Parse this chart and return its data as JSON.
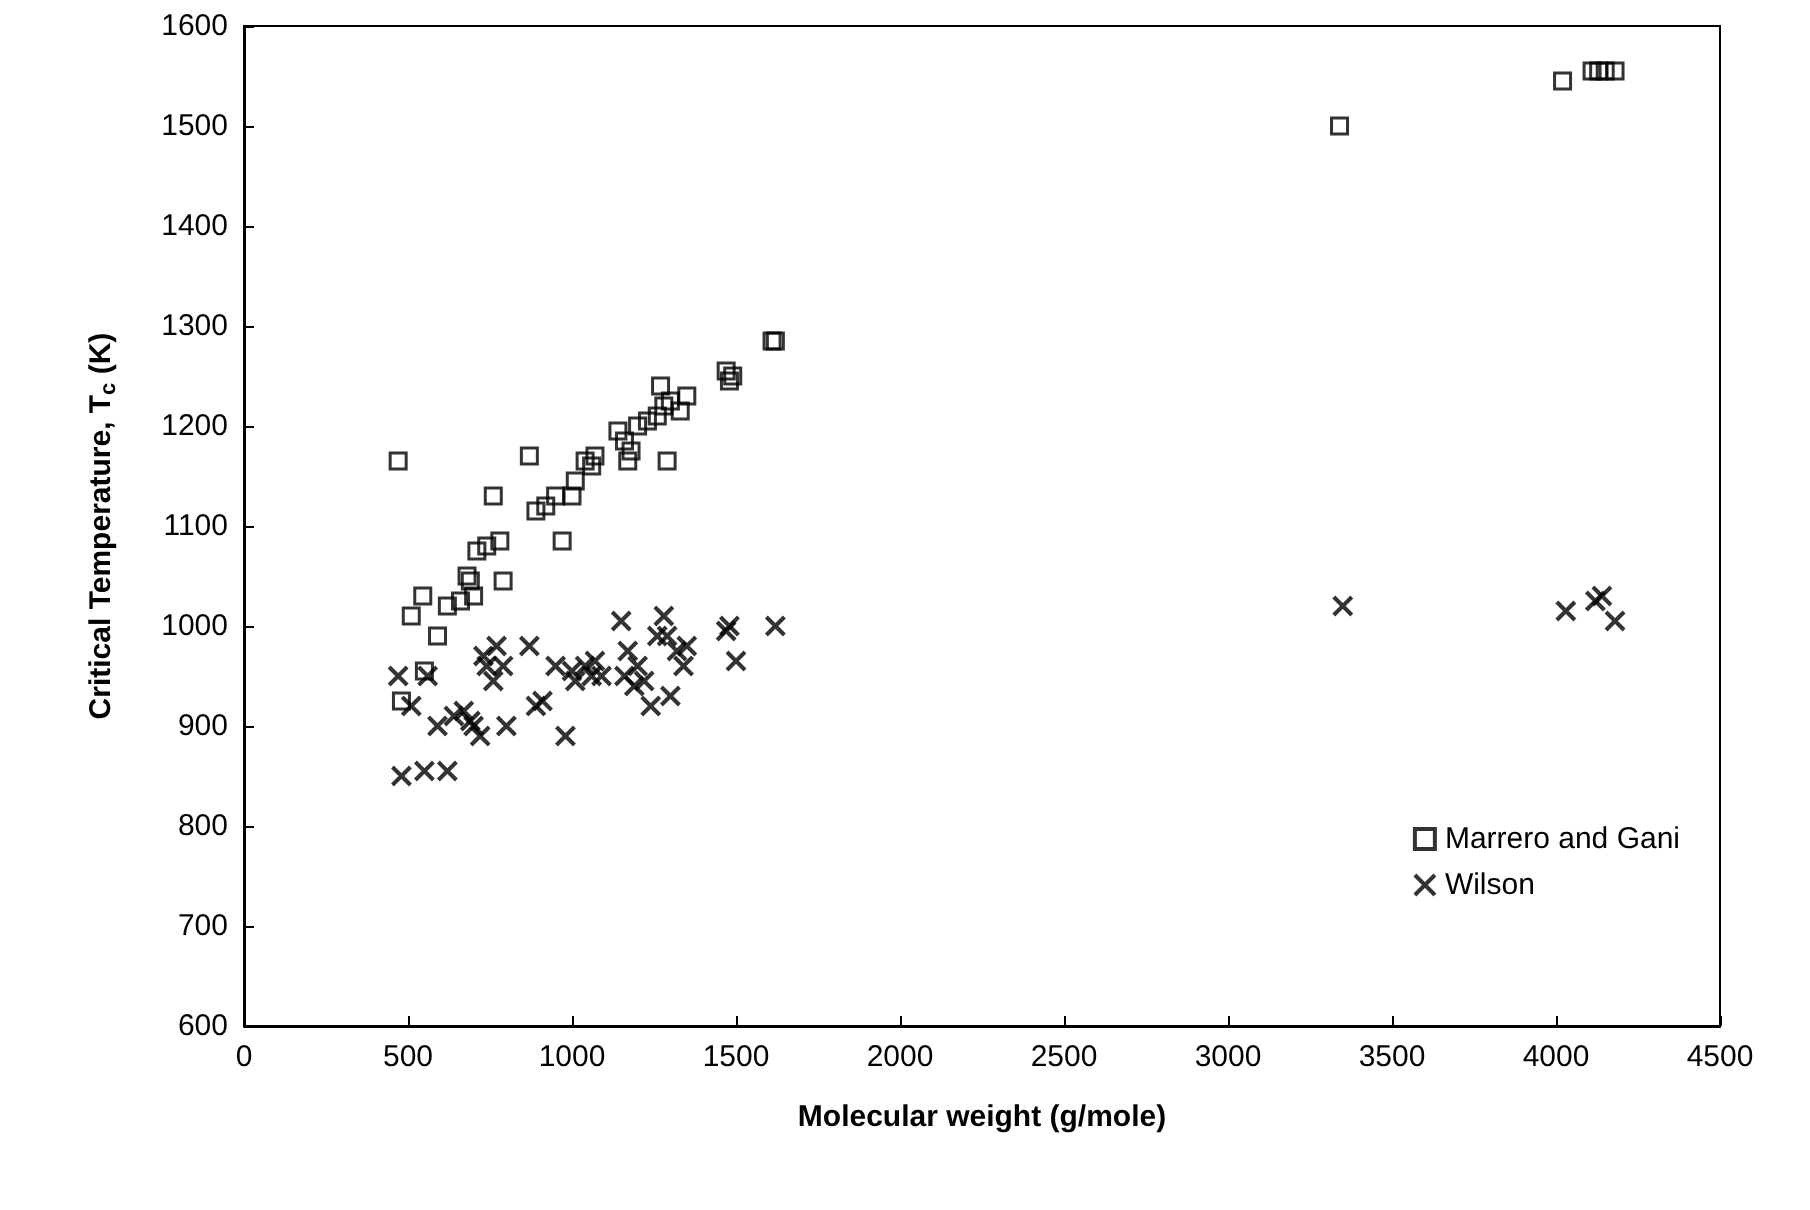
{
  "chart_data": {
    "type": "scatter",
    "xlabel": "Molecular weight (g/mole)",
    "ylabel": "Critical Temperature, T$_{c}$ (K)",
    "xlim": [
      0,
      4500
    ],
    "xticks": [
      0,
      500,
      1000,
      1500,
      2000,
      2500,
      3000,
      3500,
      4000,
      4500
    ],
    "ylim": [
      600,
      1600
    ],
    "yticks": [
      600,
      700,
      800,
      900,
      1000,
      1100,
      1200,
      1300,
      1400,
      1500,
      1600
    ],
    "grid": false,
    "legend": "bottom right",
    "series": [
      {
        "name": "Marrero and Gani",
        "color": "#000000",
        "marker": "square",
        "x": [
          470,
          480,
          510,
          545,
          550,
          590,
          620,
          660,
          680,
          690,
          700,
          710,
          740,
          760,
          780,
          790,
          870,
          890,
          920,
          950,
          970,
          1000,
          1010,
          1040,
          1060,
          1070,
          1140,
          1160,
          1170,
          1180,
          1200,
          1230,
          1260,
          1270,
          1280,
          1290,
          1300,
          1330,
          1350,
          1470,
          1480,
          1490,
          1610,
          1620,
          3340,
          4020,
          4110,
          4130,
          4150,
          4180
        ],
        "values": [
          1165,
          925,
          1010,
          1030,
          955,
          990,
          1020,
          1025,
          1050,
          1045,
          1030,
          1075,
          1080,
          1130,
          1085,
          1045,
          1170,
          1115,
          1120,
          1130,
          1085,
          1130,
          1145,
          1165,
          1160,
          1170,
          1195,
          1185,
          1165,
          1175,
          1200,
          1205,
          1210,
          1240,
          1220,
          1165,
          1225,
          1215,
          1230,
          1255,
          1245,
          1250,
          1285,
          1285,
          1500,
          1545,
          1555,
          1555,
          1555,
          1555
        ]
      },
      {
        "name": "Wilson",
        "color": "#000000",
        "marker": "cross",
        "x": [
          470,
          480,
          510,
          550,
          560,
          590,
          620,
          640,
          670,
          690,
          700,
          720,
          730,
          740,
          760,
          770,
          790,
          800,
          870,
          890,
          910,
          950,
          980,
          1000,
          1010,
          1040,
          1060,
          1070,
          1090,
          1150,
          1160,
          1170,
          1190,
          1200,
          1220,
          1240,
          1260,
          1280,
          1290,
          1300,
          1320,
          1340,
          1350,
          1470,
          1480,
          1500,
          1620,
          3350,
          4030,
          4120,
          4140,
          4180
        ],
        "values": [
          950,
          850,
          920,
          855,
          950,
          900,
          855,
          910,
          915,
          905,
          900,
          890,
          970,
          960,
          945,
          980,
          960,
          900,
          980,
          920,
          925,
          960,
          890,
          955,
          945,
          960,
          950,
          965,
          950,
          1005,
          950,
          975,
          940,
          960,
          945,
          920,
          990,
          1010,
          990,
          930,
          975,
          960,
          980,
          995,
          1000,
          965,
          1000,
          1020,
          1015,
          1025,
          1030,
          1005
        ]
      }
    ]
  }
}
